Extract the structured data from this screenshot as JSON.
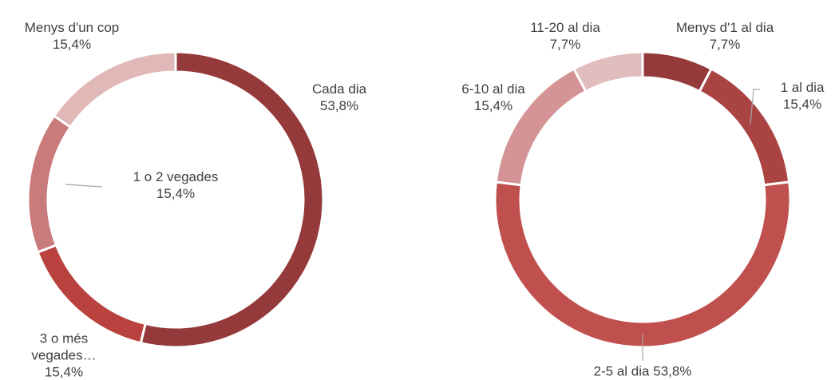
{
  "chart_data": [
    {
      "type": "donut",
      "categories": [
        "Cada dia",
        "3 o més vegades…",
        "1 o 2 vegades",
        "Menys d'un cop"
      ],
      "values": [
        53.8,
        15.4,
        15.4,
        15.4
      ],
      "value_labels": [
        "53,8%",
        "15,4%",
        "15,4%",
        "15,4%"
      ],
      "colors": [
        "#953a3b",
        "#b9423e",
        "#c97a7a",
        "#e0b8b8"
      ]
    },
    {
      "type": "donut",
      "categories": [
        "Menys d'1 al dia",
        "1 al dia",
        "2-5 al dia",
        "6-10 al dia",
        "11-20 al dia"
      ],
      "values": [
        7.7,
        15.4,
        53.8,
        15.4,
        7.7
      ],
      "value_labels": [
        "7,7%",
        "15,4%",
        "53,8%",
        "15,4%",
        "7,7%"
      ],
      "colors": [
        "#953a3b",
        "#a94443",
        "#c0504e",
        "#d49394",
        "#e1bdbd"
      ]
    }
  ]
}
